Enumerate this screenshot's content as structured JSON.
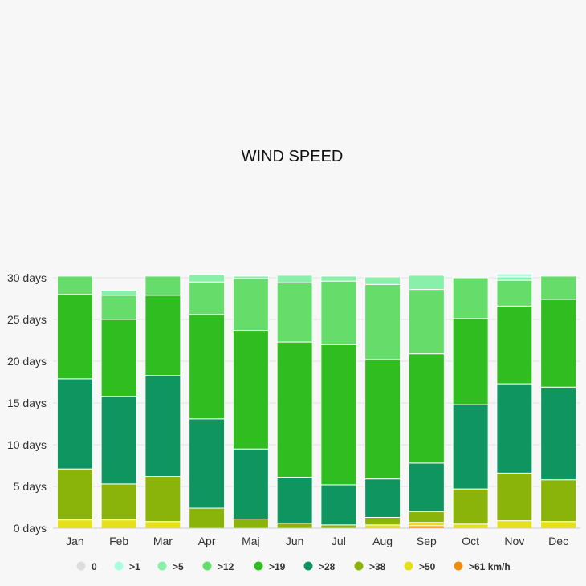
{
  "chart_data": {
    "type": "bar",
    "stacked": true,
    "title": "WIND SPEED",
    "ylim": [
      0,
      30
    ],
    "y_ticks": [
      {
        "value": 0,
        "label": "0 days"
      },
      {
        "value": 5,
        "label": "5 days"
      },
      {
        "value": 10,
        "label": "10 days"
      },
      {
        "value": 15,
        "label": "15 days"
      },
      {
        "value": 20,
        "label": "20 days"
      },
      {
        "value": 25,
        "label": "25 days"
      },
      {
        "value": 30,
        "label": "30 days"
      }
    ],
    "categories": [
      "Jan",
      "Feb",
      "Mar",
      "Apr",
      "Maj",
      "Jun",
      "Jul",
      "Aug",
      "Sep",
      "Oct",
      "Nov",
      "Dec"
    ],
    "grid": true,
    "legend_position": "bottom",
    "series": [
      {
        "name": "0",
        "color": "#dddddd",
        "values": [
          0,
          0,
          0,
          0,
          0,
          0,
          0,
          0,
          0,
          0,
          0,
          0
        ]
      },
      {
        "name": ">1",
        "color": "#aaffdd",
        "values": [
          0,
          0,
          0,
          0,
          0,
          0,
          0,
          0,
          0,
          0,
          0.4,
          0
        ]
      },
      {
        "name": ">5",
        "color": "#88f0a8",
        "values": [
          0,
          0.6,
          0,
          0.9,
          0.3,
          0.9,
          0.6,
          0.9,
          1.7,
          0,
          0.4,
          0
        ]
      },
      {
        "name": ">12",
        "color": "#66dd6a",
        "values": [
          2.2,
          2.9,
          2.3,
          3.9,
          6.2,
          7.1,
          7.6,
          9.0,
          7.7,
          4.9,
          3.1,
          2.8
        ]
      },
      {
        "name": ">19",
        "color": "#2fbd1f",
        "values": [
          10.1,
          9.2,
          9.6,
          12.5,
          14.2,
          16.2,
          16.8,
          14.3,
          13.1,
          10.3,
          9.3,
          10.5
        ]
      },
      {
        "name": ">28",
        "color": "#0f9660",
        "values": [
          10.8,
          10.5,
          12.1,
          10.7,
          8.4,
          5.5,
          4.8,
          4.6,
          5.8,
          10.1,
          10.7,
          11.1
        ]
      },
      {
        "name": ">38",
        "color": "#8ab40a",
        "values": [
          6.1,
          4.3,
          5.4,
          2.4,
          1.1,
          0.6,
          0.4,
          0.9,
          1.3,
          4.2,
          5.7,
          5.0
        ]
      },
      {
        "name": ">50",
        "color": "#e6e01a",
        "values": [
          1.0,
          1.0,
          0.8,
          0,
          0,
          0,
          0,
          0.4,
          0.4,
          0.5,
          0.9,
          0.8
        ]
      },
      {
        "name": ">61 km/h",
        "color": "#ee8c0c",
        "values": [
          0,
          0,
          0,
          0,
          0,
          0,
          0,
          0,
          0.3,
          0,
          0,
          0
        ]
      }
    ]
  }
}
